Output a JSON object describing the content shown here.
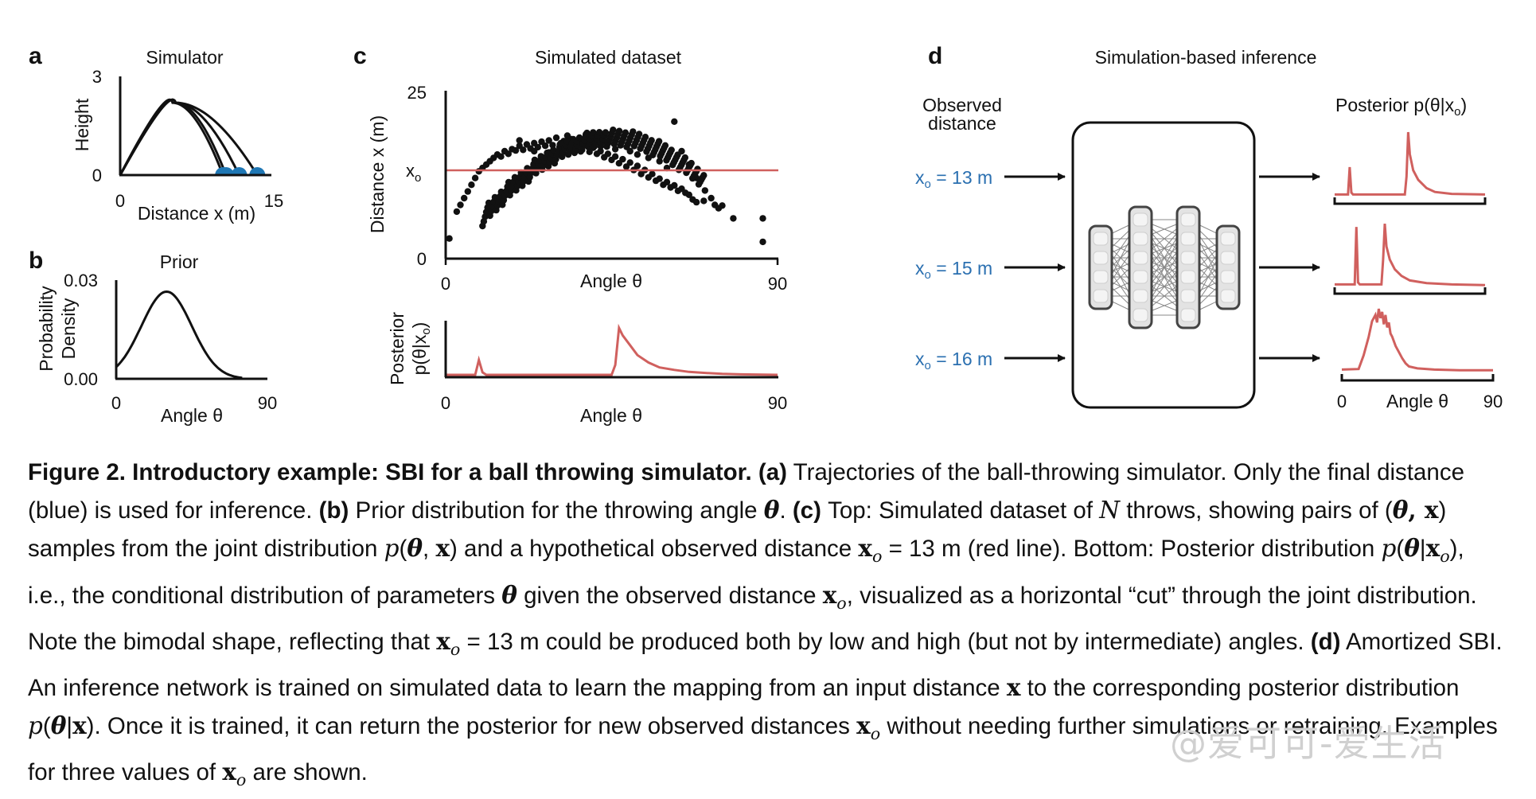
{
  "panels": {
    "a": {
      "letter": "a",
      "title": "Simulator",
      "ylabel": "Height",
      "xlabel": "Distance x (m)",
      "yticks": [
        "0",
        "3"
      ],
      "xticks": [
        "0",
        "15"
      ]
    },
    "b": {
      "letter": "b",
      "title": "Prior",
      "ylabel_line1": "Probability",
      "ylabel_line2": "Density",
      "yticks": [
        "0.00",
        "0.03"
      ],
      "xticks": [
        "0",
        "90"
      ],
      "xlabel": "Angle θ"
    },
    "c": {
      "letter": "c",
      "title": "Simulated dataset",
      "top_ylabel": "Distance x (m)",
      "top_yticks": [
        "0",
        "25"
      ],
      "xo_tick": "x",
      "xo_tick_sub": "o",
      "top_xticks": [
        "0",
        "90"
      ],
      "top_xlabel": "Angle θ",
      "bottom_ylabel_line1": "Posterior",
      "bottom_ylabel_line2": "p(θ|x",
      "bottom_ylabel_sub": "o",
      "bottom_ylabel_end": ")",
      "bottom_xticks": [
        "0",
        "90"
      ],
      "bottom_xlabel": "Angle θ"
    },
    "d": {
      "letter": "d",
      "title": "Simulation-based inference",
      "observed_line1": "Observed",
      "observed_line2": "distance",
      "posterior_label": "Posterior  p(θ|x",
      "posterior_label_sub": "o",
      "posterior_label_end": ")",
      "inputs": [
        {
          "x": "x",
          "sub": "o",
          "rest": " = 13 m"
        },
        {
          "x": "x",
          "sub": "o",
          "rest": " = 15 m"
        },
        {
          "x": "x",
          "sub": "o",
          "rest": " = 16 m"
        }
      ],
      "xticks": [
        "0",
        "90"
      ],
      "xlabel": "Angle θ"
    }
  },
  "colors": {
    "ink": "#111111",
    "landing_blue": "#1f77b4",
    "posterior_red": "#d0605e",
    "input_label_blue": "#2a6fb0",
    "network_fill": "#e3e3e3",
    "network_edge": "#444444"
  },
  "chart_data": [
    {
      "panel": "a",
      "type": "line",
      "title": "Simulator",
      "xlabel": "Distance x (m)",
      "ylabel": "Height",
      "xlim": [
        0,
        15
      ],
      "ylim": [
        0,
        3
      ],
      "series": [
        {
          "values_x": [
            0,
            5.5,
            10.5
          ],
          "peak_height": 2.2
        },
        {
          "values_x": [
            0,
            5.5,
            11.8
          ],
          "peak_height": 2.2
        },
        {
          "values_x": [
            0,
            5.5,
            13.6
          ],
          "peak_height": 2.2
        },
        {
          "values_x": [
            0,
            5.2,
            10.2
          ],
          "peak_height": 2.2
        }
      ],
      "landing_points": [
        10.2,
        10.5,
        11.8,
        13.6
      ]
    },
    {
      "panel": "b",
      "type": "line",
      "title": "Prior",
      "xlabel": "Angle θ",
      "ylabel": "Probability Density",
      "xlim": [
        0,
        90
      ],
      "ylim": [
        0,
        0.03
      ],
      "distribution": "normal",
      "mean": 30,
      "std": 15,
      "peak": 0.0265
    },
    {
      "panel": "c-top",
      "type": "scatter",
      "title": "Simulated dataset",
      "xlabel": "Angle θ",
      "ylabel": "Distance x (m)",
      "xlim": [
        0,
        90
      ],
      "ylim": [
        0,
        25
      ],
      "observed_line_y": 13,
      "points": [
        [
          1,
          3
        ],
        [
          3,
          7
        ],
        [
          4,
          8
        ],
        [
          5,
          9
        ],
        [
          6,
          10
        ],
        [
          7,
          11
        ],
        [
          8,
          12
        ],
        [
          9,
          13
        ],
        [
          10,
          13.5
        ],
        [
          11,
          14
        ],
        [
          12,
          14.5
        ],
        [
          13,
          15
        ],
        [
          14,
          15.5
        ],
        [
          15,
          15.2
        ],
        [
          16,
          16
        ],
        [
          17,
          15.6
        ],
        [
          18,
          16.3
        ],
        [
          19,
          16.1
        ],
        [
          20,
          16.8
        ],
        [
          21,
          16.2
        ],
        [
          22,
          17
        ],
        [
          23,
          16.4
        ],
        [
          24,
          17.2
        ],
        [
          25,
          16.6
        ],
        [
          26,
          17.4
        ],
        [
          27,
          16.8
        ],
        [
          28,
          17.6
        ],
        [
          29,
          16.9
        ],
        [
          30,
          18
        ],
        [
          31,
          17
        ],
        [
          32,
          17.5
        ],
        [
          33,
          16.7
        ],
        [
          34,
          17.8
        ],
        [
          35,
          16.5
        ],
        [
          36,
          17.2
        ],
        [
          37,
          16.2
        ],
        [
          38,
          16.9
        ],
        [
          39,
          15.9
        ],
        [
          40,
          16.5
        ],
        [
          41,
          15.6
        ],
        [
          42,
          16
        ],
        [
          43,
          15.1
        ],
        [
          44,
          15.6
        ],
        [
          45,
          14.7
        ],
        [
          46,
          15.2
        ],
        [
          47,
          14.2
        ],
        [
          48,
          14.8
        ],
        [
          49,
          13.7
        ],
        [
          50,
          14.3
        ],
        [
          51,
          13.2
        ],
        [
          52,
          13.8
        ],
        [
          53,
          12.6
        ],
        [
          54,
          13.2
        ],
        [
          55,
          12.1
        ],
        [
          56,
          12.6
        ],
        [
          57,
          11.6
        ],
        [
          58,
          11.9
        ],
        [
          59,
          11
        ],
        [
          60,
          11.4
        ],
        [
          61,
          10.6
        ],
        [
          62,
          10.9
        ],
        [
          63,
          10.1
        ],
        [
          64,
          10.4
        ],
        [
          65,
          9.8
        ],
        [
          66,
          9.5
        ],
        [
          67,
          8.8
        ],
        [
          68,
          8.4
        ],
        [
          70,
          8.6
        ],
        [
          73,
          8
        ],
        [
          74,
          7.5
        ],
        [
          75,
          7.9
        ],
        [
          78,
          6
        ],
        [
          86,
          6
        ],
        [
          86,
          2.5
        ],
        [
          20,
          17.6
        ],
        [
          24,
          16
        ],
        [
          28,
          15.8
        ],
        [
          33,
          18.3
        ],
        [
          38,
          18.5
        ],
        [
          46,
          16.3
        ],
        [
          50,
          16
        ],
        [
          52,
          15.5
        ],
        [
          55,
          15
        ],
        [
          58,
          14.5
        ],
        [
          60,
          13.5
        ],
        [
          62,
          20.4
        ],
        [
          64,
          16
        ],
        [
          66,
          14
        ],
        [
          68,
          12
        ],
        [
          72,
          9
        ]
      ]
    },
    {
      "panel": "c-bottom",
      "type": "line",
      "xlabel": "Angle θ",
      "ylabel": "Posterior p(θ|xo)",
      "xlim": [
        0,
        90
      ],
      "series": [
        {
          "x": [
            0,
            8,
            9,
            10,
            11,
            45,
            46,
            47,
            48,
            50,
            52,
            55,
            58,
            62,
            66,
            70,
            75,
            80,
            90
          ],
          "y": [
            0,
            0,
            0.3,
            0.05,
            0,
            0,
            0.2,
            0.95,
            0.8,
            0.6,
            0.4,
            0.25,
            0.15,
            0.1,
            0.06,
            0.04,
            0.02,
            0.01,
            0
          ]
        }
      ]
    },
    {
      "panel": "d-13m",
      "type": "line",
      "xlim": [
        0,
        90
      ],
      "series": [
        {
          "x": [
            0,
            8,
            9,
            10,
            11,
            42,
            43,
            44,
            45,
            47,
            50,
            55,
            60,
            70,
            90
          ],
          "y": [
            0.02,
            0.02,
            0.45,
            0.05,
            0.02,
            0.02,
            0.3,
            1.0,
            0.65,
            0.4,
            0.25,
            0.12,
            0.06,
            0.03,
            0.02
          ]
        }
      ]
    },
    {
      "panel": "d-15m",
      "type": "line",
      "xlim": [
        0,
        90
      ],
      "series": [
        {
          "x": [
            0,
            12,
            13,
            14,
            15,
            28,
            29,
            30,
            31,
            33,
            36,
            40,
            45,
            55,
            70,
            90
          ],
          "y": [
            0.02,
            0.02,
            0.9,
            0.05,
            0.02,
            0.02,
            0.4,
            0.95,
            0.6,
            0.4,
            0.25,
            0.15,
            0.08,
            0.04,
            0.02,
            0.01
          ]
        }
      ]
    },
    {
      "panel": "d-16m",
      "type": "line",
      "xlim": [
        0,
        90
      ],
      "xlabel": "Angle θ",
      "series": [
        {
          "x": [
            0,
            10,
            13,
            16,
            18,
            20,
            21,
            22,
            23,
            24,
            25,
            26,
            27,
            28,
            29,
            30,
            32,
            34,
            36,
            38,
            40,
            45,
            55,
            70,
            90
          ],
          "y": [
            0.02,
            0.03,
            0.25,
            0.55,
            0.8,
            0.9,
            0.78,
            1.0,
            0.85,
            0.95,
            0.75,
            0.9,
            0.7,
            0.78,
            0.6,
            0.55,
            0.4,
            0.3,
            0.2,
            0.12,
            0.07,
            0.04,
            0.02,
            0.01,
            0.01
          ]
        }
      ]
    }
  ],
  "caption": {
    "fig_label": "Figure 2. Introductory example: SBI for a ball throwing simulator.",
    "a_label": "(a)",
    "a_text": " Trajectories of the ball-throwing simulator. Only the final distance (blue) is used for inference. ",
    "b_label": "(b)",
    "b_text": " Prior distribution for the throwing angle ",
    "theta": "θ",
    "period": ". ",
    "c_label": "(c)",
    "c_text1": " Top: Simulated dataset of ",
    "N": "N",
    "c_text2": " throws, showing pairs of (",
    "comma_x": ", x",
    "c_text3": ") samples from the joint distribution ",
    "p": "p",
    "c_text4": " and a hypothetical observed distance ",
    "xo_eq": " = 13 m (red line). Bottom: Posterior distribution ",
    "c_text5": ", i.e., the conditional distribution of parameters ",
    "c_text6": " given the observed distance ",
    "c_text7": ", visualized as a horizontal “cut” through the joint distribution. Note the bimodal shape, reflecting that ",
    "c_text8": " = 13 m could be produced both by low and high (but not by intermediate) angles. ",
    "d_label": "(d)",
    "d_text1": " Amortized SBI. An inference network is trained on simulated data to learn the mapping from an input distance ",
    "d_text2": " to the corresponding posterior distribution ",
    "d_text3": ". Once it is trained, it can return the posterior for new observed distances ",
    "d_text4": " without needing further simulations or retraining. Examples for three values of ",
    "d_text5": " are shown."
  },
  "watermark": "@爱可可-爱生活"
}
